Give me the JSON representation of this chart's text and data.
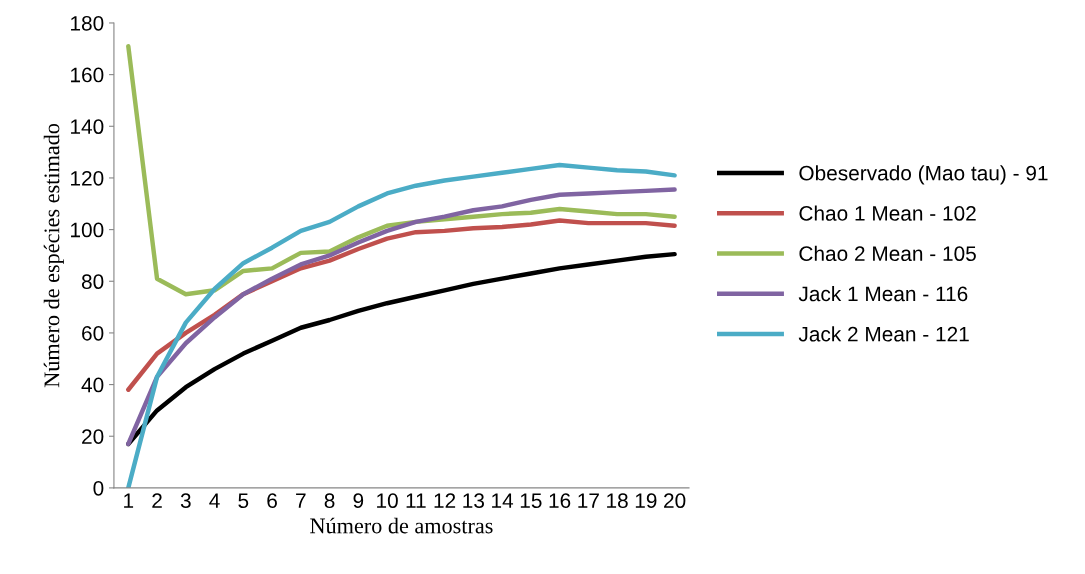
{
  "chart_data": {
    "type": "line",
    "xlabel": "Número de amostras",
    "ylabel": "Número de espécies estimado",
    "categories": [
      "1",
      "2",
      "3",
      "4",
      "5",
      "6",
      "7",
      "8",
      "9",
      "10",
      "11",
      "12",
      "13",
      "14",
      "15",
      "16",
      "17",
      "18",
      "19",
      "20"
    ],
    "ylim": [
      0,
      180
    ],
    "yticks": [
      0,
      20,
      40,
      60,
      80,
      100,
      120,
      140,
      160,
      180
    ],
    "grid": false,
    "legend": "right",
    "marker": "none",
    "line_style": "solid",
    "series": [
      {
        "name": "Obeservado (Mao tau) - 91",
        "color": "#000000",
        "values": [
          17,
          30,
          39,
          46,
          52,
          57,
          62,
          65,
          68.5,
          71.5,
          74,
          76.5,
          79,
          81,
          83,
          85,
          86.5,
          88,
          89.5,
          90.5
        ]
      },
      {
        "name": "Chao 1 Mean - 102",
        "color": "#c0504d",
        "values": [
          38,
          52,
          60,
          67,
          75,
          80,
          85,
          88,
          92.5,
          96.5,
          99,
          99.5,
          100.5,
          101,
          102,
          103.5,
          102.5,
          102.5,
          102.5,
          101.5
        ]
      },
      {
        "name": "Chao 2 Mean - 105",
        "color": "#9bbb59",
        "values": [
          171,
          81,
          75,
          76.5,
          84,
          85,
          91,
          91.5,
          97,
          101.5,
          103,
          104,
          105,
          106,
          106.5,
          108,
          107,
          106,
          106,
          105
        ]
      },
      {
        "name": "Jack 1 Mean - 116",
        "color": "#8064a2",
        "values": [
          17,
          43,
          56,
          66,
          75,
          81,
          86.5,
          90,
          95,
          99.5,
          103,
          105,
          107.5,
          109,
          111.5,
          113.5,
          114,
          114.5,
          115,
          115.5
        ]
      },
      {
        "name": "Jack 2 Mean - 121",
        "color": "#4bacc6",
        "values": [
          0,
          43,
          64,
          77,
          87,
          93,
          99.5,
          103,
          109,
          114,
          117,
          119,
          120.5,
          122,
          123.5,
          125,
          124,
          123,
          122.5,
          121
        ]
      }
    ]
  }
}
